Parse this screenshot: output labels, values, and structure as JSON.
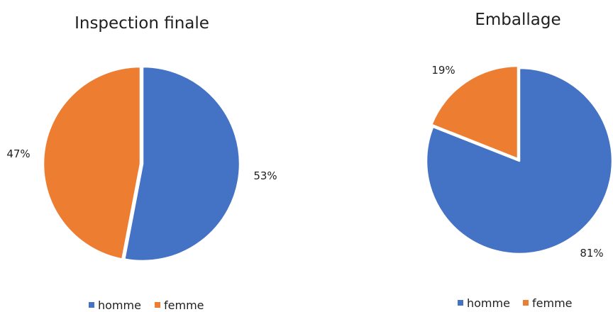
{
  "colors": {
    "homme": "#4472C4",
    "femme": "#ED7D31",
    "slice_edge": "#ffffff"
  },
  "chart_data": [
    {
      "type": "pie",
      "title": "Inspection finale",
      "categories": [
        "homme",
        "femme"
      ],
      "values": [
        53,
        47
      ],
      "labels": [
        "53%",
        "47%"
      ],
      "legend": [
        "homme",
        "femme"
      ],
      "legend_position": "bottom"
    },
    {
      "type": "pie",
      "title": "Emballage",
      "categories": [
        "homme",
        "femme"
      ],
      "values": [
        81,
        19
      ],
      "labels": [
        "81%",
        "19%"
      ],
      "legend": [
        "homme",
        "femme"
      ],
      "legend_position": "bottom"
    }
  ]
}
